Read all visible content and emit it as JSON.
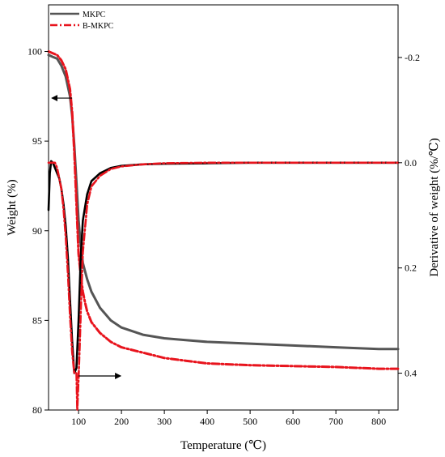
{
  "chart_data": {
    "type": "line",
    "title": "",
    "xlabel": "Temperature (℃)",
    "ylabel_left": "Weight (%)",
    "ylabel_right": "Derivative of weight (%/℃)",
    "xlim": [
      30,
      845
    ],
    "ylim_left": [
      80,
      102.6
    ],
    "ylim_right": [
      0.47,
      -0.3
    ],
    "right_axis_inverted": true,
    "x_ticks": [
      100,
      200,
      300,
      400,
      500,
      600,
      700,
      800
    ],
    "y_left_ticks": [
      80,
      85,
      90,
      95,
      100
    ],
    "y_right_ticks": [
      -0.2,
      0.0,
      0.2,
      0.4
    ],
    "y_right_tick_labels": [
      "-0.2",
      "0.0",
      "0.2",
      "0.4"
    ],
    "grid": false,
    "legend_position": "top-left",
    "series": [
      {
        "name": "MKPC",
        "kind": "weight",
        "axis": "left",
        "color": "#555555",
        "dash": "solid",
        "x": [
          30,
          40,
          50,
          60,
          70,
          80,
          85,
          90,
          95,
          100,
          105,
          110,
          120,
          130,
          150,
          175,
          200,
          250,
          300,
          350,
          400,
          500,
          600,
          700,
          800,
          845
        ],
        "y": [
          99.8,
          99.7,
          99.6,
          99.2,
          98.6,
          97.5,
          96.4,
          94.8,
          92.7,
          90.6,
          89.2,
          88.2,
          87.3,
          86.6,
          85.7,
          85.0,
          84.6,
          84.2,
          84.0,
          83.9,
          83.8,
          83.7,
          83.6,
          83.5,
          83.4,
          83.4
        ]
      },
      {
        "name": "B-MKPC",
        "kind": "weight",
        "axis": "left",
        "color": "#e8141d",
        "dash": "dashdot",
        "x": [
          30,
          40,
          50,
          60,
          70,
          80,
          85,
          90,
          95,
          100,
          105,
          110,
          115,
          120,
          130,
          150,
          175,
          200,
          250,
          300,
          350,
          400,
          500,
          600,
          700,
          800,
          845
        ],
        "y": [
          100.0,
          99.9,
          99.8,
          99.5,
          99.0,
          97.9,
          96.6,
          94.4,
          91.5,
          88.7,
          87.5,
          86.6,
          86.0,
          85.5,
          84.9,
          84.3,
          83.8,
          83.5,
          83.2,
          82.9,
          82.75,
          82.6,
          82.5,
          82.45,
          82.4,
          82.3,
          82.3
        ]
      },
      {
        "name": "MKPC",
        "kind": "derivative",
        "axis": "right",
        "color": "#000000",
        "dash": "solid",
        "x": [
          30,
          33,
          36,
          40,
          45,
          50,
          55,
          60,
          65,
          70,
          75,
          80,
          85,
          90,
          95,
          100,
          105,
          110,
          120,
          130,
          150,
          175,
          200,
          250,
          300,
          400,
          500,
          600,
          700,
          800,
          845
        ],
        "y": [
          0.09,
          0.02,
          -0.003,
          0.0,
          0.01,
          0.02,
          0.03,
          0.05,
          0.08,
          0.12,
          0.18,
          0.26,
          0.34,
          0.4,
          0.39,
          0.3,
          0.18,
          0.11,
          0.06,
          0.035,
          0.02,
          0.01,
          0.006,
          0.003,
          0.002,
          0.001,
          0.0,
          0.0,
          0.0,
          0.0,
          0.0
        ]
      },
      {
        "name": "B-MKPC",
        "kind": "derivative",
        "axis": "right",
        "color": "#e8141d",
        "dash": "dashdot",
        "x": [
          30,
          33,
          36,
          40,
          45,
          50,
          55,
          60,
          65,
          70,
          75,
          80,
          85,
          90,
          95,
          97,
          100,
          103,
          106,
          110,
          120,
          130,
          150,
          175,
          200,
          250,
          300,
          400,
          500,
          600,
          700,
          800,
          845
        ],
        "y": [
          0.0,
          0.0,
          0.0,
          0.0,
          0.0,
          0.01,
          0.03,
          0.05,
          0.09,
          0.14,
          0.21,
          0.29,
          0.36,
          0.4,
          0.4,
          0.47,
          0.41,
          0.34,
          0.26,
          0.17,
          0.08,
          0.045,
          0.025,
          0.012,
          0.007,
          0.003,
          0.001,
          0.0,
          0.0,
          0.0,
          0.0,
          0.0,
          0.0
        ]
      }
    ],
    "legend": [
      {
        "name": "MKPC",
        "color": "#555555",
        "dash": "solid"
      },
      {
        "name": "B-MKPC",
        "color": "#e8141d",
        "dash": "dashdot"
      }
    ],
    "annotations": [
      {
        "type": "arrow",
        "direction": "left",
        "points_to": "left-axis",
        "x": 85,
        "y_left": 97.4
      },
      {
        "type": "arrow",
        "direction": "right",
        "points_to": "right-axis",
        "x": 100,
        "y_left": 81.9
      }
    ]
  }
}
